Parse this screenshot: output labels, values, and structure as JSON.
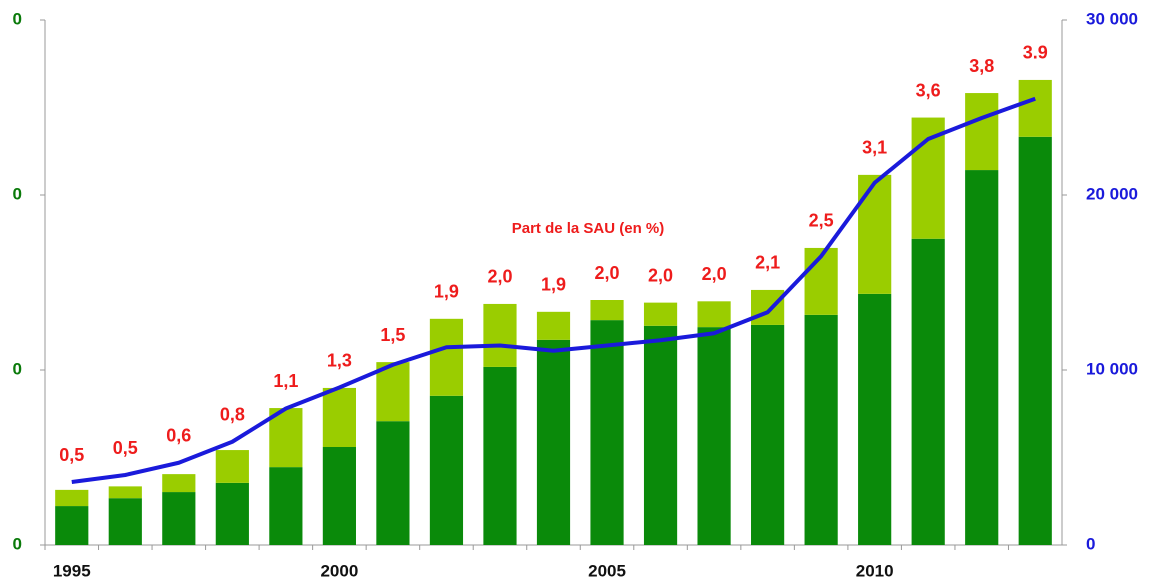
{
  "chart_data": {
    "type": "bar",
    "annotation": "Part de la SAU (en %)",
    "categories": [
      "1995",
      null,
      null,
      null,
      null,
      "2000",
      null,
      null,
      null,
      null,
      "2005",
      null,
      null,
      null,
      null,
      "2010",
      null,
      null,
      null
    ],
    "stacked": true,
    "ylim": [
      0,
      1200000
    ],
    "yticks": [
      {
        "value": 0,
        "label": "0"
      },
      {
        "value": 400000,
        "label": "0"
      },
      {
        "value": 800000,
        "label": "0"
      },
      {
        "value": 1200000,
        "label": "0"
      }
    ],
    "y2lim": [
      0,
      30000
    ],
    "y2ticks": [
      0,
      {
        "value": 10000,
        "label": "10 000"
      },
      {
        "value": 20000,
        "label": "20 000"
      },
      {
        "value": 30000,
        "label": "30 000"
      }
    ],
    "series": [
      {
        "type": "bar",
        "color": "#0a8a0a",
        "values": [
          89000,
          107000,
          121000,
          142000,
          178000,
          224000,
          283000,
          341000,
          407000,
          469000,
          514000,
          501000,
          498000,
          503000,
          526000,
          574000,
          700000,
          857000,
          933000
        ]
      },
      {
        "type": "bar",
        "color": "#9acd00",
        "values": [
          37000,
          27000,
          41000,
          75000,
          135000,
          135000,
          135000,
          176000,
          144000,
          64000,
          46000,
          53000,
          59000,
          80000,
          153000,
          272000,
          277000,
          176000,
          130000
        ]
      },
      {
        "type": "line",
        "axis": "y2",
        "color": "#1a1adb",
        "values": [
          3600,
          4000,
          4700,
          5900,
          7800,
          9000,
          10300,
          11300,
          11400,
          11100,
          11400,
          11700,
          12100,
          13300,
          16500,
          20700,
          23200,
          24400,
          25500
        ]
      }
    ],
    "data_labels": {
      "color": "#ee1c1c",
      "values": [
        0.5,
        0.5,
        0.6,
        0.8,
        1.1,
        1.3,
        1.5,
        1.9,
        2.0,
        1.9,
        2.0,
        2.0,
        2.0,
        2.1,
        2.5,
        3.1,
        3.6,
        3.8,
        3.9
      ],
      "value_labels": [
        "0,5",
        "0,5",
        "0,6",
        "0,8",
        "1,1",
        "1,3",
        "1,5",
        "1,9",
        "2,0",
        "1,9",
        "2,0",
        "2,0",
        "2,0",
        "2,1",
        "2,5",
        "3,1",
        "3,6",
        "3,8",
        "3.9"
      ]
    }
  }
}
